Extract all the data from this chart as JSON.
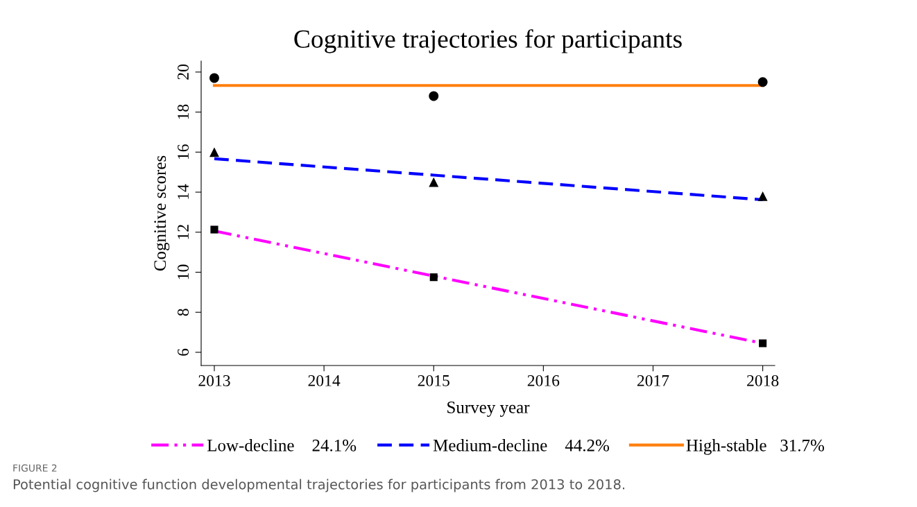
{
  "chart_data": {
    "type": "line",
    "title": "Cognitive trajectories for participants",
    "xlabel": "Survey year",
    "ylabel": "Cognitive scores",
    "x": [
      2013,
      2015,
      2018
    ],
    "series": [
      {
        "name": "Low-decline    24.1%",
        "color": "#ff00ff",
        "line_style": "dashdotdot",
        "marker": "none",
        "values": [
          12.06,
          9.81,
          6.45
        ]
      },
      {
        "name": "Medium-decline    44.2%",
        "color": "#0000ff",
        "line_style": "dashed",
        "marker": "none",
        "values": [
          15.67,
          14.85,
          13.62
        ]
      },
      {
        "name": "High-stable   31.7%",
        "color": "#ff7f0e",
        "line_style": "solid",
        "marker": "none",
        "values": [
          19.33,
          19.33,
          19.33
        ]
      },
      {
        "type": "scatter",
        "color": "#000000",
        "marker": "square",
        "values": [
          12.13,
          9.75,
          6.45
        ]
      },
      {
        "type": "scatter",
        "color": "#000000",
        "marker": "triangle",
        "values": [
          16.0,
          14.5,
          13.8
        ]
      },
      {
        "type": "scatter",
        "color": "#000000",
        "marker": "circle",
        "values": [
          19.7,
          18.8,
          19.5
        ]
      }
    ],
    "xlim": [
      2012.88,
      2018.11
    ],
    "xticks": [
      2013,
      2014,
      2015,
      2016,
      2017,
      2018
    ],
    "ylim": [
      5.34,
      20.55
    ],
    "yticks": [
      6,
      8,
      10,
      12,
      14,
      16,
      18,
      20
    ],
    "grid": false,
    "legend": "bottom",
    "annotations": [
      "FIGURE 2",
      "Potential cognitive function developmental trajectories for participants from 2013 to 2018."
    ]
  }
}
